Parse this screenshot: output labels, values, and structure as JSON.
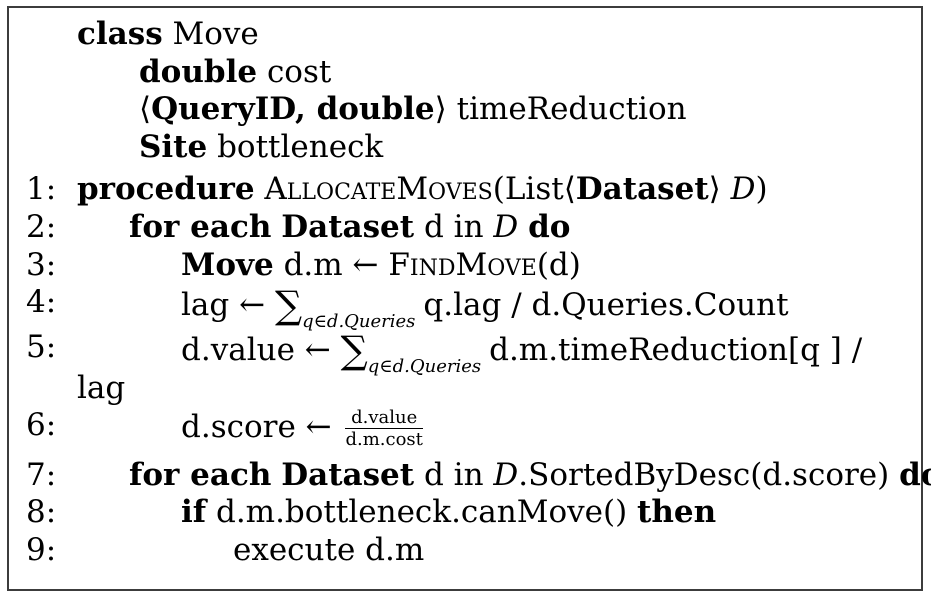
{
  "class_block": {
    "kw_class": "class",
    "name": "Move",
    "fields": [
      {
        "type": "double",
        "name": "cost"
      },
      {
        "type_lang": "⟨",
        "type": "QueryID, double",
        "type_rang": "⟩",
        "name": "timeReduction"
      },
      {
        "type": "Site",
        "name": "bottleneck"
      }
    ]
  },
  "lines": [
    {
      "num": "1:",
      "kw": "procedure",
      "proc": "AllocateMoves",
      "args_pre": "(List⟨",
      "args_kw": "Dataset",
      "args_post": "⟩ ",
      "args_var": "D",
      "args_end": ")"
    },
    {
      "num": "2:",
      "kw1": "for each",
      "type": "Dataset",
      "text": " d in ",
      "var": "D",
      "kw2": "do"
    },
    {
      "num": "3:",
      "type": "Move",
      "text": " d.m ← ",
      "func": "FindMove",
      "args": "(d)"
    },
    {
      "num": "4:",
      "pre": "lag ← ",
      "sum": "∑",
      "sub": "q∈d.Queries",
      "post": "q.lag / d.Queries.Count"
    },
    {
      "num": "5:",
      "pre": "d.value ← ",
      "sum": "∑",
      "sub": "q∈d.Queries",
      "post": "d.m.timeReduction[q ] /",
      "wrap": "lag"
    },
    {
      "num": "6:",
      "pre": "d.score ← ",
      "frac_num": "d.value",
      "frac_den": "d.m.cost"
    },
    {
      "num": "7:",
      "kw1": "for each",
      "type": "Dataset",
      "text": " d in ",
      "var": "D",
      "text2": ".SortedByDesc(d.score) ",
      "kw2": "do"
    },
    {
      "num": "8:",
      "kw1": "if",
      "text": " d.m.bottleneck.canMove() ",
      "kw2": "then"
    },
    {
      "num": "9:",
      "text": "execute d.m"
    }
  ]
}
